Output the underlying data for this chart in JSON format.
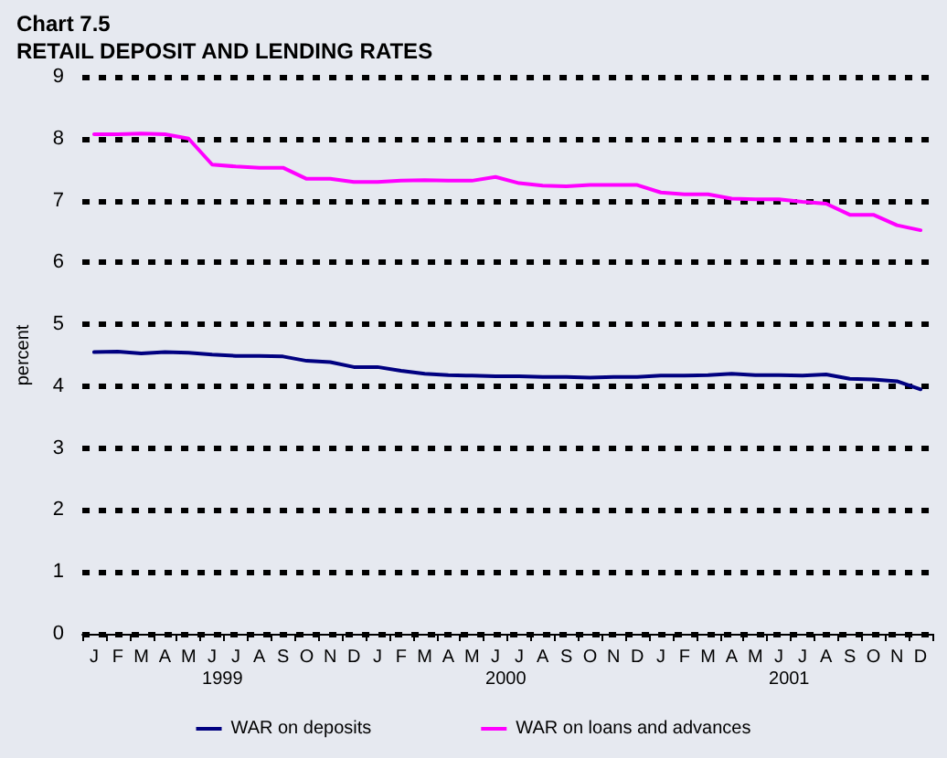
{
  "chart_data": {
    "type": "line",
    "title": "Chart 7.5",
    "subtitle": "RETAIL DEPOSIT AND LENDING RATES",
    "ylabel": "percent",
    "categories": [
      "J",
      "F",
      "M",
      "A",
      "M",
      "J",
      "J",
      "A",
      "S",
      "O",
      "N",
      "D",
      "J",
      "F",
      "M",
      "A",
      "M",
      "J",
      "J",
      "A",
      "S",
      "O",
      "N",
      "D",
      "J",
      "F",
      "M",
      "A",
      "M",
      "J",
      "J",
      "A",
      "S",
      "O",
      "N",
      "D"
    ],
    "annotations": [
      "1999",
      "2000",
      "2001"
    ],
    "series": [
      {
        "name": "WAR on deposits",
        "color": "#000080",
        "values": [
          4.55,
          4.56,
          4.53,
          4.55,
          4.54,
          4.51,
          4.49,
          4.49,
          4.48,
          4.41,
          4.39,
          4.31,
          4.31,
          4.25,
          4.2,
          4.18,
          4.17,
          4.16,
          4.16,
          4.15,
          4.15,
          4.14,
          4.15,
          4.15,
          4.17,
          4.17,
          4.18,
          4.2,
          4.18,
          4.18,
          4.17,
          4.19,
          4.12,
          4.11,
          4.08,
          3.95
        ]
      },
      {
        "name": "WAR on loans and advances",
        "color": "#ff00ff",
        "values": [
          8.07,
          8.07,
          8.08,
          8.07,
          8.0,
          7.58,
          7.55,
          7.53,
          7.53,
          7.35,
          7.35,
          7.3,
          7.3,
          7.32,
          7.33,
          7.32,
          7.32,
          7.38,
          7.28,
          7.24,
          7.23,
          7.25,
          7.25,
          7.25,
          7.13,
          7.1,
          7.1,
          7.03,
          7.02,
          7.02,
          6.98,
          6.95,
          6.77,
          6.77,
          6.6,
          6.52
        ]
      }
    ],
    "ylim": [
      0,
      9
    ],
    "yticks": [
      0,
      1,
      2,
      3,
      4,
      5,
      6,
      7,
      8,
      9
    ],
    "grid": "y",
    "legend": "bottom",
    "marker": "none",
    "line_style": "solid"
  }
}
